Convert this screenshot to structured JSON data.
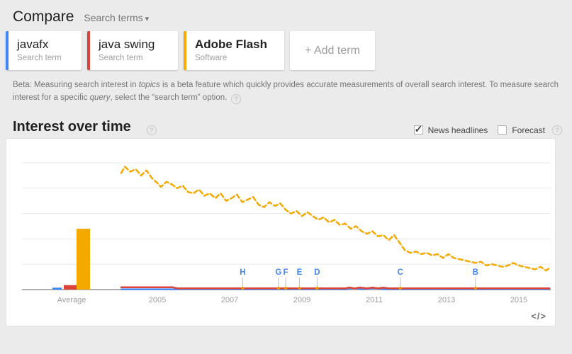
{
  "header": {
    "title": "Compare",
    "dropdown_label": "Search terms",
    "caret_icon": "▾"
  },
  "terms": [
    {
      "name": "javafx",
      "type_label": "Search term",
      "color": "#4285f4"
    },
    {
      "name": "java swing",
      "type_label": "Search term",
      "color": "#db4437"
    },
    {
      "name": "Adobe Flash",
      "type_label": "Software",
      "color": "#f4a900"
    }
  ],
  "add_term": {
    "label": "+ Add term"
  },
  "beta_note": {
    "prefix": "Beta: Measuring search interest in ",
    "italic_1": "topics",
    "middle": " is a beta feature which quickly provides accurate measurements of overall search interest. To measure search interest for a specific ",
    "italic_2": "query",
    "suffix": ", select the “search term” option.",
    "help_icon": "?"
  },
  "section": {
    "title": "Interest over time",
    "help_icon": "?"
  },
  "controls": {
    "news_headlines": {
      "label": "News headlines",
      "checked": true,
      "check_glyph": "✓"
    },
    "forecast": {
      "label": "Forecast",
      "checked": false,
      "check_glyph": ""
    },
    "help_icon": "?"
  },
  "chart_data": {
    "type": "line",
    "title": "Interest over time",
    "x_axis": {
      "range": [
        2004,
        2016
      ],
      "ticks": [
        {
          "label": "2005",
          "year": 2005
        },
        {
          "label": "2007",
          "year": 2007
        },
        {
          "label": "2009",
          "year": 2009
        },
        {
          "label": "2011",
          "year": 2011
        },
        {
          "label": "2013",
          "year": 2013
        },
        {
          "label": "2015",
          "year": 2015
        }
      ]
    },
    "y_axis": {
      "range": [
        0,
        100
      ],
      "gridline_values": [
        20,
        40,
        60,
        80,
        100
      ],
      "labels_visible": false
    },
    "average": {
      "label": "Average",
      "bars": [
        {
          "name": "javafx",
          "color": "#4285f4",
          "value": 1.5
        },
        {
          "name": "java swing",
          "color": "#db4437",
          "value": 3.5
        },
        {
          "name": "Adobe Flash",
          "color": "#f4a900",
          "value": 48
        }
      ]
    },
    "series": [
      {
        "name": "javafx",
        "color": "#4285f4",
        "width": 2.2,
        "dashed": false,
        "points": [
          [
            2004.0,
            0.3
          ],
          [
            2010.2,
            0.3
          ],
          [
            2010.4,
            1.0
          ],
          [
            2010.7,
            0.4
          ],
          [
            2011.0,
            1.0
          ],
          [
            2011.3,
            0.3
          ],
          [
            2015.85,
            0.3
          ]
        ]
      },
      {
        "name": "java swing",
        "color": "#db4437",
        "width": 2.5,
        "dashed": false,
        "points": [
          [
            2004.0,
            1.8
          ],
          [
            2005.43,
            1.8
          ],
          [
            2005.55,
            1.0
          ],
          [
            2010.2,
            1.0
          ],
          [
            2010.32,
            1.7
          ],
          [
            2010.45,
            0.9
          ],
          [
            2010.6,
            1.6
          ],
          [
            2010.8,
            1.0
          ],
          [
            2010.95,
            1.6
          ],
          [
            2011.1,
            1.0
          ],
          [
            2011.25,
            1.5
          ],
          [
            2011.4,
            1.0
          ],
          [
            2015.85,
            1.0
          ]
        ]
      },
      {
        "name": "Adobe Flash",
        "color": "#f4a900",
        "width": 2.5,
        "dashed": true,
        "points": [
          [
            2004.0,
            92
          ],
          [
            2004.1,
            97
          ],
          [
            2004.25,
            93
          ],
          [
            2004.4,
            95
          ],
          [
            2004.55,
            90
          ],
          [
            2004.7,
            94
          ],
          [
            2004.85,
            88
          ],
          [
            2005.0,
            84
          ],
          [
            2005.1,
            81
          ],
          [
            2005.25,
            85
          ],
          [
            2005.4,
            83
          ],
          [
            2005.55,
            80
          ],
          [
            2005.7,
            82
          ],
          [
            2005.85,
            77
          ],
          [
            2006.0,
            76
          ],
          [
            2006.15,
            79
          ],
          [
            2006.3,
            74
          ],
          [
            2006.45,
            76
          ],
          [
            2006.6,
            72
          ],
          [
            2006.75,
            76
          ],
          [
            2006.9,
            70
          ],
          [
            2007.05,
            72
          ],
          [
            2007.2,
            75
          ],
          [
            2007.35,
            69
          ],
          [
            2007.5,
            71
          ],
          [
            2007.65,
            73
          ],
          [
            2007.8,
            67
          ],
          [
            2007.95,
            65
          ],
          [
            2008.1,
            69
          ],
          [
            2008.25,
            66
          ],
          [
            2008.4,
            68
          ],
          [
            2008.55,
            63
          ],
          [
            2008.7,
            60
          ],
          [
            2008.85,
            62
          ],
          [
            2009.0,
            58
          ],
          [
            2009.15,
            61
          ],
          [
            2009.3,
            58
          ],
          [
            2009.45,
            55
          ],
          [
            2009.6,
            57
          ],
          [
            2009.75,
            53
          ],
          [
            2009.9,
            55
          ],
          [
            2010.05,
            51
          ],
          [
            2010.2,
            52
          ],
          [
            2010.35,
            48
          ],
          [
            2010.5,
            50
          ],
          [
            2010.65,
            46
          ],
          [
            2010.8,
            44
          ],
          [
            2010.95,
            46
          ],
          [
            2011.1,
            42
          ],
          [
            2011.25,
            43
          ],
          [
            2011.4,
            39
          ],
          [
            2011.55,
            43
          ],
          [
            2011.7,
            37
          ],
          [
            2011.85,
            31
          ],
          [
            2012.0,
            29
          ],
          [
            2012.15,
            30
          ],
          [
            2012.3,
            28
          ],
          [
            2012.45,
            29
          ],
          [
            2012.6,
            27
          ],
          [
            2012.75,
            28
          ],
          [
            2012.9,
            25
          ],
          [
            2013.05,
            28
          ],
          [
            2013.2,
            25
          ],
          [
            2013.35,
            24
          ],
          [
            2013.5,
            23
          ],
          [
            2013.65,
            22
          ],
          [
            2013.8,
            21
          ],
          [
            2013.95,
            22
          ],
          [
            2014.1,
            19
          ],
          [
            2014.25,
            20
          ],
          [
            2014.4,
            19
          ],
          [
            2014.55,
            18
          ],
          [
            2014.7,
            19
          ],
          [
            2014.85,
            21
          ],
          [
            2015.0,
            19
          ],
          [
            2015.15,
            18
          ],
          [
            2015.3,
            17
          ],
          [
            2015.45,
            16
          ],
          [
            2015.6,
            18
          ],
          [
            2015.75,
            15
          ],
          [
            2015.85,
            17
          ]
        ]
      }
    ],
    "news_markers": [
      {
        "label": "H",
        "year": 2007.36
      },
      {
        "label": "G",
        "year": 2008.35
      },
      {
        "label": "F",
        "year": 2008.55
      },
      {
        "label": "E",
        "year": 2008.93
      },
      {
        "label": "D",
        "year": 2009.42
      },
      {
        "label": "C",
        "year": 2011.72
      },
      {
        "label": "B",
        "year": 2013.8
      }
    ],
    "legend_visible": false,
    "grid": true
  },
  "embed_icon": "</>"
}
